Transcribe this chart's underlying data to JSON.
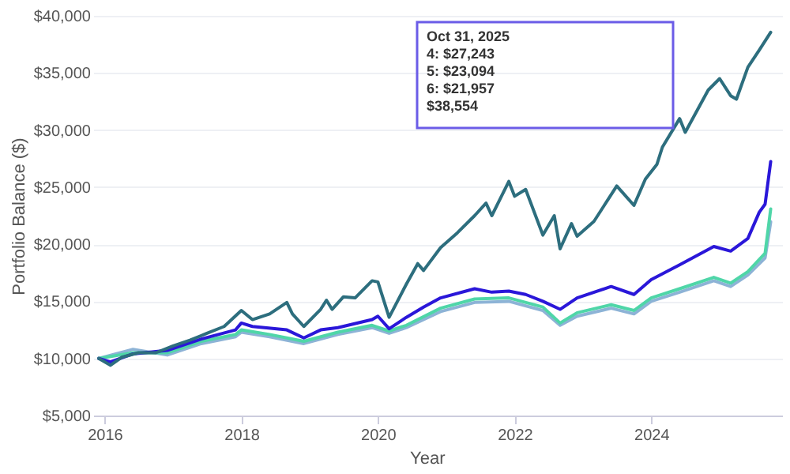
{
  "chart_data": {
    "type": "line",
    "xlabel": "Year",
    "ylabel": "Portfolio Balance ($)",
    "xlim": [
      "2015-11",
      "2025-12"
    ],
    "xticks": [
      {
        "value": "2016",
        "label": "2016"
      },
      {
        "value": "2018",
        "label": "2018"
      },
      {
        "value": "2020",
        "label": "2020"
      },
      {
        "value": "2022",
        "label": "2022"
      },
      {
        "value": "2024",
        "label": "2024"
      }
    ],
    "ylim": [
      5000,
      40000
    ],
    "yticks": [
      {
        "value": 5000,
        "label": "$5,000"
      },
      {
        "value": 10000,
        "label": "$10,000"
      },
      {
        "value": 15000,
        "label": "$15,000"
      },
      {
        "value": 20000,
        "label": "$20,000"
      },
      {
        "value": 25000,
        "label": "$25,000"
      },
      {
        "value": 30000,
        "label": "$30,000"
      },
      {
        "value": 35000,
        "label": "$35,000"
      },
      {
        "value": 40000,
        "label": "$40,000"
      }
    ],
    "grid": "y",
    "legend": false,
    "line_style": "solid",
    "series": [
      {
        "color": "#8db3d6",
        "x": [
          "2015-12",
          "2016-06",
          "2016-12",
          "2017-06",
          "2017-12",
          "2018-01",
          "2018-06",
          "2018-12",
          "2019-06",
          "2019-12",
          "2020-03",
          "2020-06",
          "2020-12",
          "2021-06",
          "2021-12",
          "2022-06",
          "2022-09",
          "2022-12",
          "2023-06",
          "2023-10",
          "2024-01",
          "2024-06",
          "2024-12",
          "2025-03",
          "2025-06",
          "2025-09",
          "2025-10"
        ],
        "values": [
          10000,
          10800,
          10300,
          11300,
          11900,
          12300,
          11900,
          11300,
          12100,
          12700,
          12200,
          12700,
          14100,
          14900,
          15000,
          14200,
          12900,
          13700,
          14400,
          13900,
          15000,
          15800,
          16800,
          16300,
          17300,
          18800,
          21957
        ]
      },
      {
        "color": "#4fd6a8",
        "x": [
          "2015-12",
          "2016-06",
          "2016-12",
          "2017-06",
          "2017-12",
          "2018-01",
          "2018-06",
          "2018-12",
          "2019-06",
          "2019-12",
          "2020-03",
          "2020-06",
          "2020-12",
          "2021-06",
          "2021-12",
          "2022-06",
          "2022-09",
          "2022-12",
          "2023-06",
          "2023-10",
          "2024-01",
          "2024-06",
          "2024-12",
          "2025-03",
          "2025-06",
          "2025-09",
          "2025-10"
        ],
        "values": [
          10000,
          10500,
          10500,
          11500,
          12100,
          12500,
          12100,
          11500,
          12300,
          12900,
          12400,
          12900,
          14400,
          15200,
          15300,
          14500,
          13100,
          14000,
          14700,
          14200,
          15300,
          16100,
          17100,
          16600,
          17600,
          19200,
          23094
        ]
      },
      {
        "color": "#2a17d9",
        "x": [
          "2015-12",
          "2016-02",
          "2016-06",
          "2016-12",
          "2017-06",
          "2017-12",
          "2018-01",
          "2018-03",
          "2018-09",
          "2018-12",
          "2019-03",
          "2019-06",
          "2019-12",
          "2020-01",
          "2020-03",
          "2020-06",
          "2020-09",
          "2020-12",
          "2021-06",
          "2021-09",
          "2021-12",
          "2022-03",
          "2022-06",
          "2022-09",
          "2022-12",
          "2023-06",
          "2023-10",
          "2024-01",
          "2024-06",
          "2024-12",
          "2025-03",
          "2025-06",
          "2025-08",
          "2025-09",
          "2025-10"
        ],
        "values": [
          10000,
          9700,
          10400,
          10700,
          11700,
          12500,
          13100,
          12800,
          12500,
          11800,
          12500,
          12700,
          13400,
          13700,
          12600,
          13600,
          14500,
          15300,
          16100,
          15800,
          15900,
          15600,
          15000,
          14300,
          15300,
          16300,
          15600,
          16900,
          18200,
          19800,
          19400,
          20500,
          22800,
          23500,
          27243
        ]
      },
      {
        "color": "#2d6e7e",
        "x": [
          "2015-12",
          "2016-02",
          "2016-04",
          "2016-07",
          "2016-10",
          "2017-01",
          "2017-04",
          "2017-07",
          "2017-10",
          "2018-01",
          "2018-03",
          "2018-06",
          "2018-09",
          "2018-10",
          "2018-12",
          "2019-03",
          "2019-04",
          "2019-05",
          "2019-07",
          "2019-09",
          "2019-12",
          "2020-01",
          "2020-03",
          "2020-06",
          "2020-08",
          "2020-09",
          "2020-12",
          "2021-03",
          "2021-06",
          "2021-08",
          "2021-09",
          "2021-12",
          "2022-01",
          "2022-03",
          "2022-06",
          "2022-08",
          "2022-09",
          "2022-11",
          "2022-12",
          "2023-03",
          "2023-07",
          "2023-10",
          "2023-12",
          "2024-02",
          "2024-03",
          "2024-06",
          "2024-07",
          "2024-11",
          "2025-01",
          "2025-03",
          "2025-04",
          "2025-06",
          "2025-08",
          "2025-10"
        ],
        "values": [
          10000,
          9400,
          10100,
          10500,
          10500,
          11100,
          11600,
          12200,
          12800,
          14200,
          13400,
          13900,
          14900,
          13900,
          12800,
          14300,
          15100,
          14300,
          15400,
          15300,
          16800,
          16700,
          13600,
          16500,
          18300,
          17700,
          19700,
          21000,
          22500,
          23600,
          22500,
          25500,
          24200,
          24800,
          20800,
          22500,
          19600,
          21800,
          20700,
          22000,
          25100,
          23400,
          25700,
          27000,
          28500,
          31000,
          29800,
          33500,
          34500,
          33000,
          32700,
          35500,
          37000,
          38554
        ]
      }
    ],
    "annotations": [
      "Oct 31, 2025",
      "4: $27,243",
      "5: $23,094",
      "6: $21,957",
      "$38,554"
    ]
  }
}
